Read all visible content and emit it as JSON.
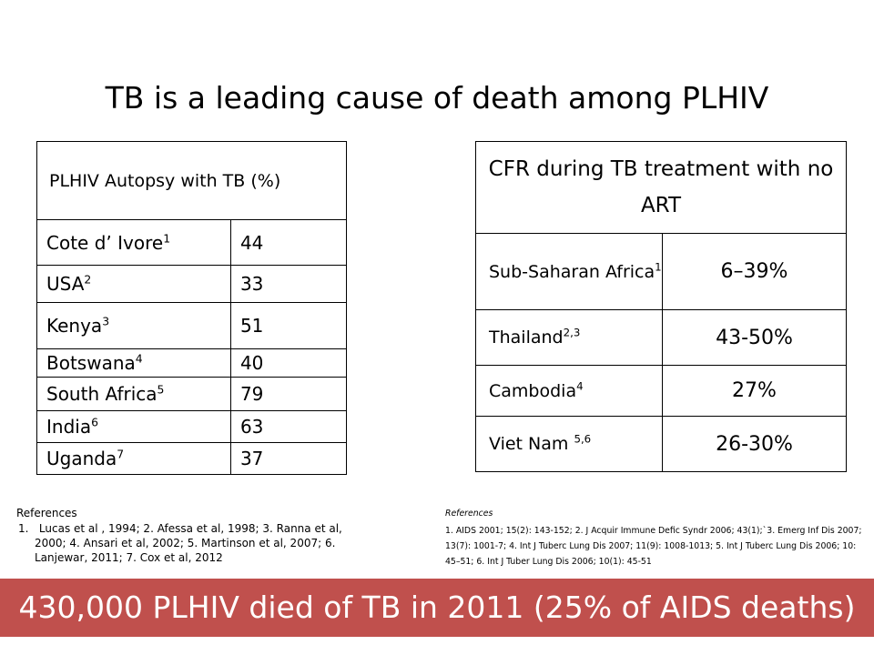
{
  "slide": {
    "title": "TB is a leading cause of death among PLHIV",
    "banner": "430,000 PLHIV died of TB in 2011 (25% of AIDS deaths)"
  },
  "table_autopsy": {
    "header": "PLHIV Autopsy with TB (%)",
    "rows": [
      {
        "country": "Cote d’ Ivore",
        "ref": "1",
        "value": "44"
      },
      {
        "country": "USA",
        "ref": "2",
        "value": "33"
      },
      {
        "country": "Kenya",
        "ref": "3",
        "value": "51"
      },
      {
        "country": "Botswana",
        "ref": "4",
        "value": "40"
      },
      {
        "country": "South Africa",
        "ref": "5",
        "value": "79"
      },
      {
        "country": "India",
        "ref": "6",
        "value": "63"
      },
      {
        "country": "Uganda",
        "ref": "7",
        "value": "37"
      }
    ]
  },
  "table_cfr": {
    "header": "CFR during TB treatment with no ART",
    "rows": [
      {
        "country": "Sub-Saharan Africa",
        "ref": "1",
        "value": "6–39%"
      },
      {
        "country": "Thailand",
        "ref": "2,3",
        "value": "43-50%"
      },
      {
        "country": "Cambodia",
        "ref": "4",
        "value": "27%"
      },
      {
        "country": "Viet Nam ",
        "ref": "5,6",
        "value": "26-30%"
      }
    ]
  },
  "references_left": {
    "heading": "References",
    "number": "1.",
    "text": "Lucas et al , 1994; 2. Afessa et al, 1998; 3. Ranna et al, 2000; 4. Ansari et al, 2002; 5. Martinson et al, 2007; 6. Lanjewar, 2011; 7. Cox et al, 2012"
  },
  "references_right": {
    "heading": "References",
    "text": "1. AIDS 2001; 15(2): 143-152; 2. J Acquir Immune Defic Syndr 2006; 43(1);`3. Emerg Inf Dis 2007; 13(7): 1001-7; 4. Int J Tuberc Lung Dis 2007; 11(9): 1008-1013; 5. Int J Tuberc Lung Dis 2006; 10: 45–51; 6. Int J Tuber Lung Dis 2006; 10(1): 45-51"
  }
}
